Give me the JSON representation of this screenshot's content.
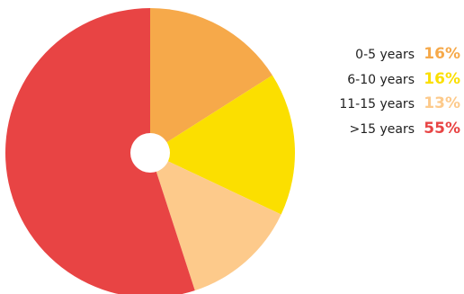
{
  "chart_data": {
    "type": "pie",
    "donut_hole": true,
    "slices": [
      {
        "label": "0-5 years",
        "value": 16,
        "display": "16%",
        "color": "#f6a94a"
      },
      {
        "label": "6-10 years",
        "value": 16,
        "display": "16%",
        "color": "#fbdf00"
      },
      {
        "label": "11-15 years",
        "value": 13,
        "display": "13%",
        "color": "#fdca8b"
      },
      {
        "label": ">15 years",
        "value": 55,
        "display": "55%",
        "color": "#e84444"
      }
    ],
    "legend_position": "right"
  }
}
